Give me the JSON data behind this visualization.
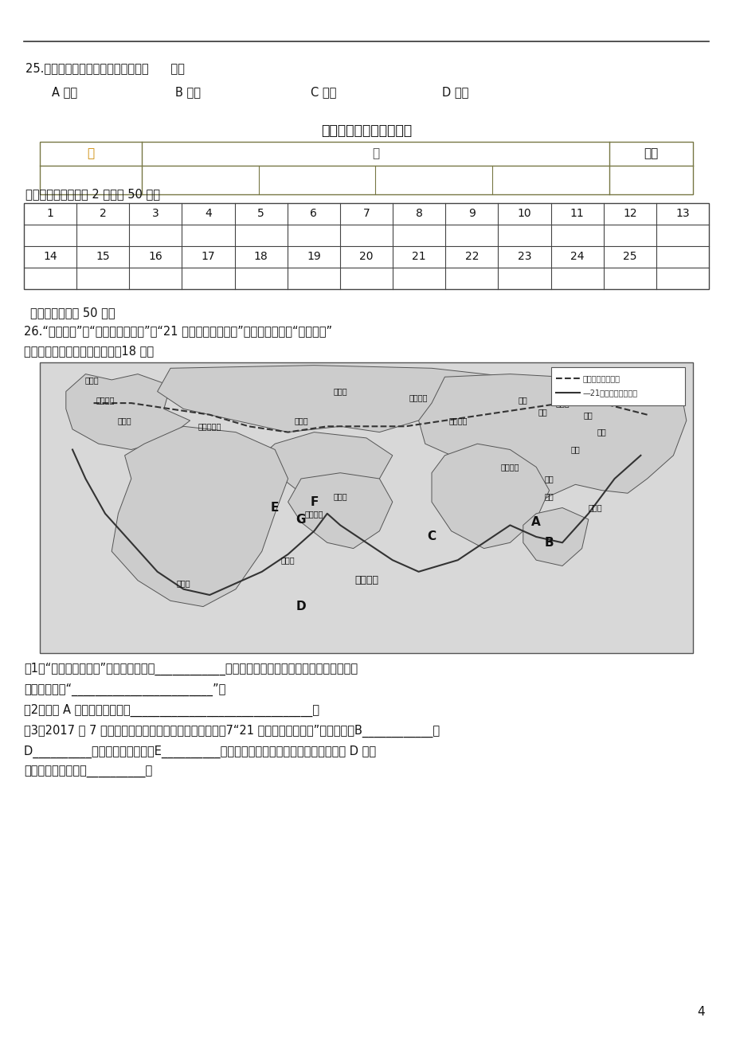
{
  "page_bg": "#ffffff",
  "q25_text": "25.．难于在北极地区看见的动物是（      ）。",
  "q25_options": [
    "A 企鹅",
    "B 海豹",
    "C 白熊",
    "D 驯鹿"
  ],
  "section_title": "七年级地理下册期末试题",
  "section1_label": "一、选择题（每小题 2 分，共 50 分）",
  "answer_row1": [
    "1",
    "2",
    "3",
    "4",
    "5",
    "6",
    "7",
    "8",
    "9",
    "10",
    "11",
    "12",
    "13"
  ],
  "answer_row2": [
    "14",
    "15",
    "16",
    "17",
    "18",
    "19",
    "20",
    "21",
    "22",
    "23",
    "24",
    "25",
    ""
  ],
  "section2_label": "二、综合题（共 50 分）",
  "q26_text1": "26.“一带一路”是“丝绸之路经济带”和“21 世纪海上丝绸之路”的简称，下图为“一带一路”",
  "q26_text2": "的路线图，读图回答下列问题（18 分）",
  "sub_q1": "（1）“丝绸之路经济带”经过的莫斯科是____________的首都，该国的西伯利亚大铁路连接了亚欧",
  "sub_q1b": "大陆，被称为“________________________”。",
  "sub_q2": "（2）图中 A 半岛的地形特点为_______________________________。",
  "sub_q3": "（3）2017 年 7 月，一艘满载货物的轮船从我国出发，氧7“21 世纪海上丝绸之路”经过南海、B____________、",
  "sub_q3b": "D__________、阿拉伯海、红海、E__________，地中海、大西洋到达欧洲，当轮船经过 D 大洋",
  "sub_q3c": "时是顺风还是逆风？__________。",
  "page_num": "4"
}
